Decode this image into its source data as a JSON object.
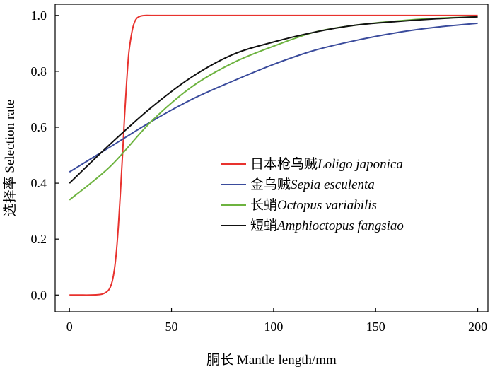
{
  "chart_data": {
    "type": "line",
    "title": "",
    "xlabel": "胴长 Mantle length/mm",
    "ylabel": "选择率 Selection rate",
    "xlim": [
      -7,
      205
    ],
    "ylim": [
      -0.06,
      1.04
    ],
    "xticks": [
      0,
      50,
      100,
      150,
      200
    ],
    "yticks": [
      0.0,
      0.2,
      0.4,
      0.6,
      0.8,
      1.0
    ],
    "xtick_labels": [
      "0",
      "50",
      "100",
      "150",
      "200"
    ],
    "ytick_labels": [
      "0.0",
      "0.2",
      "0.4",
      "0.6",
      "0.8",
      "1.0"
    ],
    "grid": false,
    "legend_position": "center-right",
    "series": [
      {
        "name_cn": "日本枪乌贼",
        "name": "Loligo japonica",
        "color": "#e8322e",
        "x": [
          0,
          5,
          10,
          15,
          17,
          19,
          20,
          21,
          22,
          23,
          24,
          25,
          26,
          27,
          28,
          29,
          30,
          31,
          32,
          33,
          34,
          35,
          37,
          40,
          50,
          100,
          150,
          200
        ],
        "y": [
          0.0,
          0.0,
          0.0,
          0.002,
          0.006,
          0.016,
          0.028,
          0.05,
          0.09,
          0.155,
          0.25,
          0.37,
          0.5,
          0.64,
          0.76,
          0.86,
          0.915,
          0.955,
          0.978,
          0.99,
          0.995,
          0.998,
          1.0,
          1.0,
          1.0,
          1.0,
          1.0,
          1.0
        ]
      },
      {
        "name_cn": "金乌贼",
        "name": "Sepia esculenta",
        "color": "#3a4b9c",
        "x": [
          0,
          20,
          40,
          60,
          80,
          100,
          120,
          140,
          160,
          180,
          200
        ],
        "y": [
          0.44,
          0.53,
          0.62,
          0.7,
          0.765,
          0.825,
          0.875,
          0.91,
          0.938,
          0.958,
          0.972
        ]
      },
      {
        "name_cn": "长蛸",
        "name": "Octopus variabilis",
        "color": "#6db33f",
        "x": [
          0,
          20,
          40,
          60,
          80,
          100,
          120,
          140,
          160,
          180,
          200
        ],
        "y": [
          0.34,
          0.46,
          0.62,
          0.745,
          0.83,
          0.89,
          0.94,
          0.965,
          0.98,
          0.99,
          0.995
        ]
      },
      {
        "name_cn": "短蛸",
        "name": "Amphioctopus fangsiao",
        "color": "#111111",
        "x": [
          0,
          20,
          40,
          60,
          80,
          100,
          120,
          140,
          160,
          180,
          200
        ],
        "y": [
          0.4,
          0.54,
          0.67,
          0.78,
          0.86,
          0.905,
          0.94,
          0.965,
          0.978,
          0.988,
          0.995
        ]
      }
    ]
  }
}
